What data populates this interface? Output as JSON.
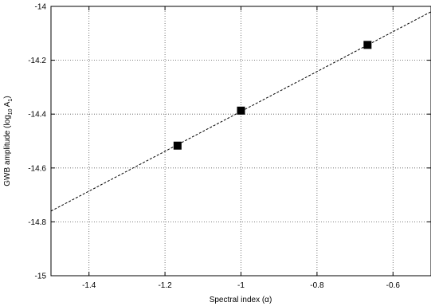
{
  "chart_data": {
    "type": "scatter",
    "xlabel": "Spectral index (α)",
    "ylabel": "GWB amplitude (log",
    "ylabel_sub": "10",
    "ylabel_tail": " A",
    "ylabel_sub2": "1",
    "ylabel_end": ")",
    "xlim": [
      -1.5,
      -0.5
    ],
    "ylim": [
      -15,
      -14
    ],
    "xticks": [
      {
        "value": -1.4,
        "label": "-1.4"
      },
      {
        "value": -1.2,
        "label": "-1.2"
      },
      {
        "value": -1.0,
        "label": "-1"
      },
      {
        "value": -0.8,
        "label": "-0.8"
      },
      {
        "value": -0.6,
        "label": "-0.6"
      }
    ],
    "yticks": [
      {
        "value": -15.0,
        "label": "-15"
      },
      {
        "value": -14.8,
        "label": "-14.8"
      },
      {
        "value": -14.6,
        "label": "-14.6"
      },
      {
        "value": -14.4,
        "label": "-14.4"
      },
      {
        "value": -14.2,
        "label": "-14.2"
      },
      {
        "value": -14.0,
        "label": "-14"
      }
    ],
    "grid": true,
    "points": [
      {
        "x": -1.167,
        "y": -14.517
      },
      {
        "x": -1.0,
        "y": -14.387
      },
      {
        "x": -0.667,
        "y": -14.143
      }
    ],
    "fit_line": {
      "x": [
        -1.5,
        -0.5
      ],
      "y": [
        -14.76,
        -14.02
      ],
      "style": "dashed"
    },
    "colors": {
      "marker": "#000000",
      "line": "#000000",
      "grid": "#555555"
    }
  }
}
